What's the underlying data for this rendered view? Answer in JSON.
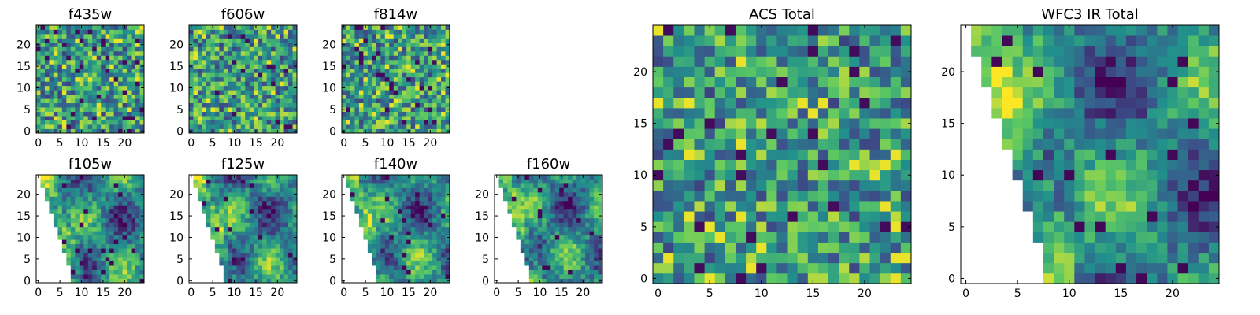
{
  "chart_data": [
    {
      "type": "heatmap",
      "title": "f435w",
      "xlim": [
        0,
        24
      ],
      "ylim": [
        0,
        24
      ],
      "xticks": [
        0,
        5,
        10,
        15,
        20
      ],
      "yticks": [
        0,
        5,
        10,
        15,
        20
      ],
      "grid": false,
      "colormap": "viridis",
      "mask": "none"
    },
    {
      "type": "heatmap",
      "title": "f606w",
      "xlim": [
        0,
        24
      ],
      "ylim": [
        0,
        24
      ],
      "xticks": [
        0,
        5,
        10,
        15,
        20
      ],
      "yticks": [
        0,
        5,
        10,
        15,
        20
      ],
      "grid": false,
      "colormap": "viridis",
      "mask": "none"
    },
    {
      "type": "heatmap",
      "title": "f814w",
      "xlim": [
        0,
        24
      ],
      "ylim": [
        0,
        24
      ],
      "xticks": [
        0,
        5,
        10,
        15,
        20
      ],
      "yticks": [
        0,
        5,
        10,
        15,
        20
      ],
      "grid": false,
      "colormap": "viridis",
      "mask": "none"
    },
    {
      "type": "heatmap",
      "title": "f105w",
      "xlim": [
        0,
        24
      ],
      "ylim": [
        0,
        24
      ],
      "xticks": [
        0,
        5,
        10,
        15,
        20
      ],
      "yticks": [
        0,
        5,
        10,
        15,
        20
      ],
      "grid": false,
      "colormap": "viridis",
      "mask": "lower-left blank wedge"
    },
    {
      "type": "heatmap",
      "title": "f125w",
      "xlim": [
        0,
        24
      ],
      "ylim": [
        0,
        24
      ],
      "xticks": [
        0,
        5,
        10,
        15,
        20
      ],
      "yticks": [
        0,
        5,
        10,
        15,
        20
      ],
      "grid": false,
      "colormap": "viridis",
      "mask": "lower-left blank wedge"
    },
    {
      "type": "heatmap",
      "title": "f140w",
      "xlim": [
        0,
        24
      ],
      "ylim": [
        0,
        24
      ],
      "xticks": [
        0,
        5,
        10,
        15,
        20
      ],
      "yticks": [
        0,
        5,
        10,
        15,
        20
      ],
      "grid": false,
      "colormap": "viridis",
      "mask": "lower-left blank wedge"
    },
    {
      "type": "heatmap",
      "title": "f160w",
      "xlim": [
        0,
        24
      ],
      "ylim": [
        0,
        24
      ],
      "xticks": [
        0,
        5,
        10,
        15,
        20
      ],
      "yticks": [
        0,
        5,
        10,
        15,
        20
      ],
      "grid": false,
      "colormap": "viridis",
      "mask": "lower-left blank wedge"
    },
    {
      "type": "heatmap",
      "title": "ACS Total",
      "xlim": [
        0,
        24
      ],
      "ylim": [
        0,
        24
      ],
      "xticks": [
        0,
        5,
        10,
        15,
        20
      ],
      "yticks": [
        0,
        5,
        10,
        15,
        20
      ],
      "grid": false,
      "colormap": "viridis",
      "mask": "none"
    },
    {
      "type": "heatmap",
      "title": "WFC3 IR Total",
      "xlim": [
        0,
        24
      ],
      "ylim": [
        0,
        24
      ],
      "xticks": [
        0,
        5,
        10,
        15,
        20
      ],
      "yticks": [
        0,
        5,
        10,
        15,
        20
      ],
      "grid": false,
      "colormap": "viridis",
      "mask": "lower-left blank wedge"
    }
  ],
  "colors": {
    "colormap_stops": [
      "#440154",
      "#3b528b",
      "#21918c",
      "#5ec962",
      "#fde725"
    ],
    "frame": "#000000",
    "background": "#ffffff"
  }
}
